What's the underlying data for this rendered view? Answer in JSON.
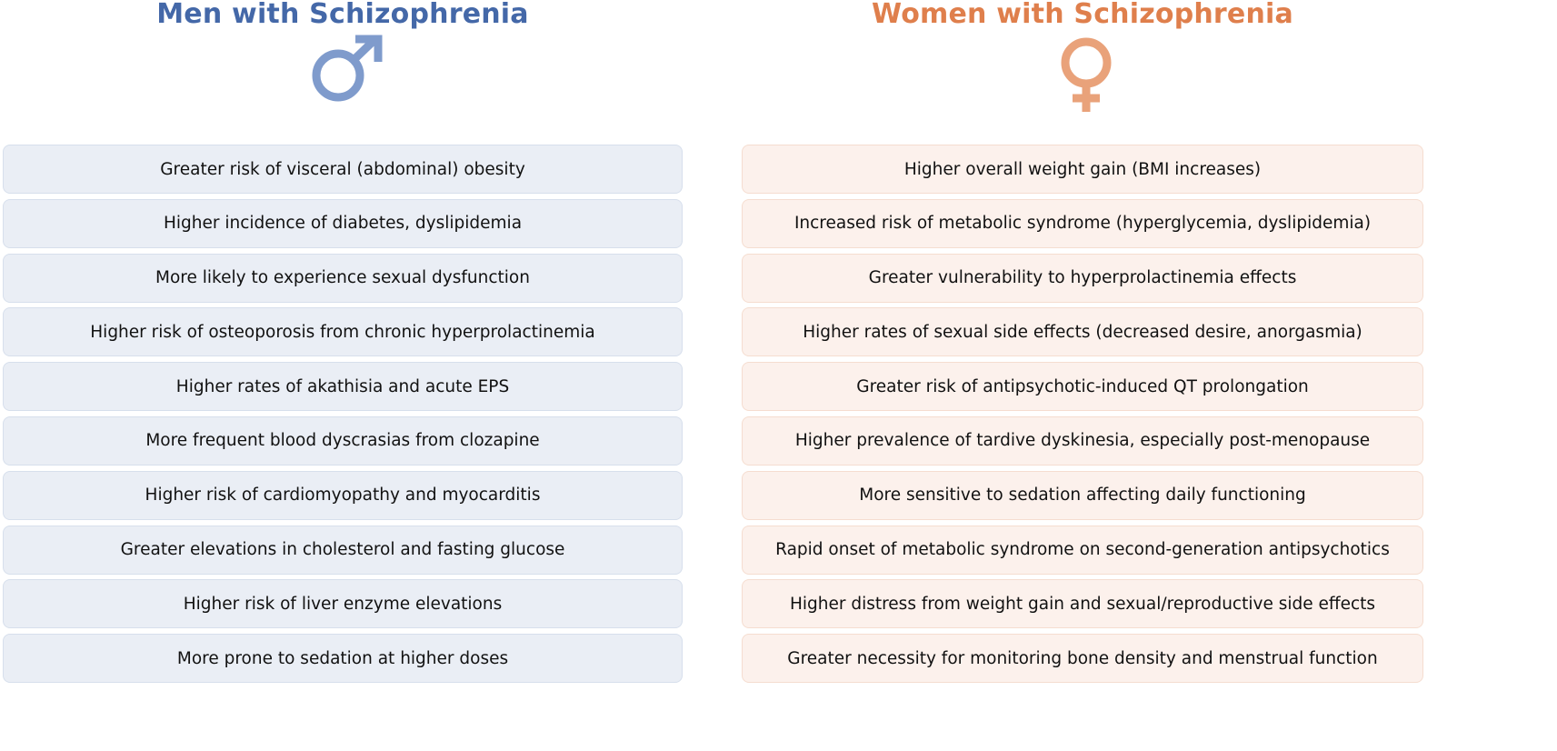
{
  "colors": {
    "men_accent": "#4468a8",
    "men_symbol": "#7f9bcc",
    "men_box_fill": "#eaeef5",
    "women_accent": "#df7f4c",
    "women_symbol": "#e9a27a",
    "women_box_fill": "#fcf1ec"
  },
  "men": {
    "title": "Men with Schizophrenia",
    "symbol_icon": "male-symbol-icon",
    "items": [
      "Greater risk of visceral (abdominal) obesity",
      "Higher incidence of diabetes, dyslipidemia",
      "More likely to experience sexual dysfunction",
      "Higher risk of osteoporosis from chronic hyperprolactinemia",
      "Higher rates of akathisia and acute EPS",
      "More frequent blood dyscrasias from clozapine",
      "Higher risk of cardiomyopathy and myocarditis",
      "Greater elevations in cholesterol and fasting glucose",
      "Higher risk of liver enzyme elevations",
      "More prone to sedation at higher doses"
    ]
  },
  "women": {
    "title": "Women with Schizophrenia",
    "symbol_icon": "female-symbol-icon",
    "items": [
      "Higher overall weight gain (BMI increases)",
      "Increased risk of metabolic syndrome (hyperglycemia, dyslipidemia)",
      "Greater vulnerability to hyperprolactinemia effects",
      "Higher rates of sexual side effects (decreased desire, anorgasmia)",
      "Greater risk of antipsychotic-induced QT prolongation",
      "Higher prevalence of tardive dyskinesia, especially post-menopause",
      "More sensitive to sedation affecting daily functioning",
      "Rapid onset of metabolic syndrome on second-generation antipsychotics",
      "Higher distress from weight gain and sexual/reproductive side effects",
      "Greater necessity for monitoring bone density and menstrual function"
    ]
  }
}
